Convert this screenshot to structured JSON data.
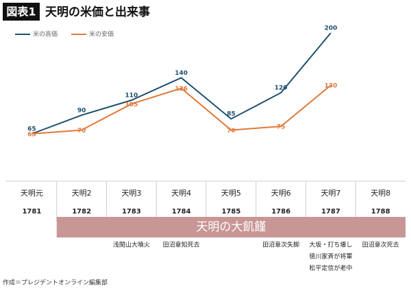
{
  "chart_data": {
    "type": "line",
    "badge": "図表1",
    "title": "天明の米価と出来事",
    "categories": [
      "天明元",
      "天明2",
      "天明3",
      "天明4",
      "天明5",
      "天明6",
      "天明7",
      "天明8"
    ],
    "years": [
      1781,
      1782,
      1783,
      1784,
      1785,
      1786,
      1787,
      1788
    ],
    "series": [
      {
        "name": "米の高価",
        "color": "#1d4f6e",
        "values": [
          65,
          90,
          110,
          140,
          85,
          120,
          200,
          null
        ]
      },
      {
        "name": "米の安価",
        "color": "#e0793a",
        "values": [
          65,
          70,
          105,
          126,
          70,
          75,
          130,
          null
        ]
      }
    ],
    "band": {
      "label": "天明の大飢饉",
      "color": "#c99696"
    },
    "events": [
      [],
      [],
      [
        "浅間山大噴火"
      ],
      [
        "田沼意知死去"
      ],
      [],
      [
        "田沼意次失脚"
      ],
      [
        "大坂・打ち壊し",
        "徳川家斉が将軍",
        "松平定信が老中"
      ],
      [
        "田沼意次死去"
      ]
    ],
    "source": "作成＝プレジデントオンライン編集部"
  }
}
